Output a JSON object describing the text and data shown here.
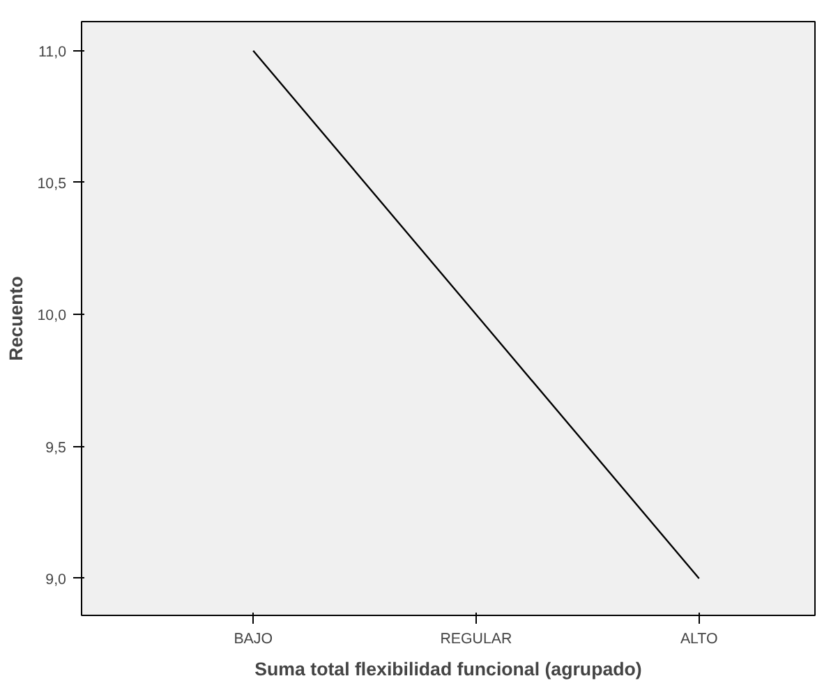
{
  "chart_data": {
    "type": "line",
    "xlabel": "Suma total flexibilidad funcional (agrupado)",
    "ylabel": "Recuento",
    "categories": [
      "BAJO",
      "REGULAR",
      "ALTO"
    ],
    "series": [
      {
        "color": "#000000",
        "values": [
          11,
          10,
          9
        ]
      }
    ],
    "ylim": [
      8.86,
      11.11
    ],
    "yticks": [
      {
        "value": 9,
        "label": "9,0"
      },
      {
        "value": 9.5,
        "label": "9,5"
      },
      {
        "value": 10,
        "label": "10,0"
      },
      {
        "value": 10.5,
        "label": "10,5"
      },
      {
        "value": 11,
        "label": "11,0"
      }
    ],
    "grid": false,
    "marker": "none",
    "line_style": "solid"
  }
}
